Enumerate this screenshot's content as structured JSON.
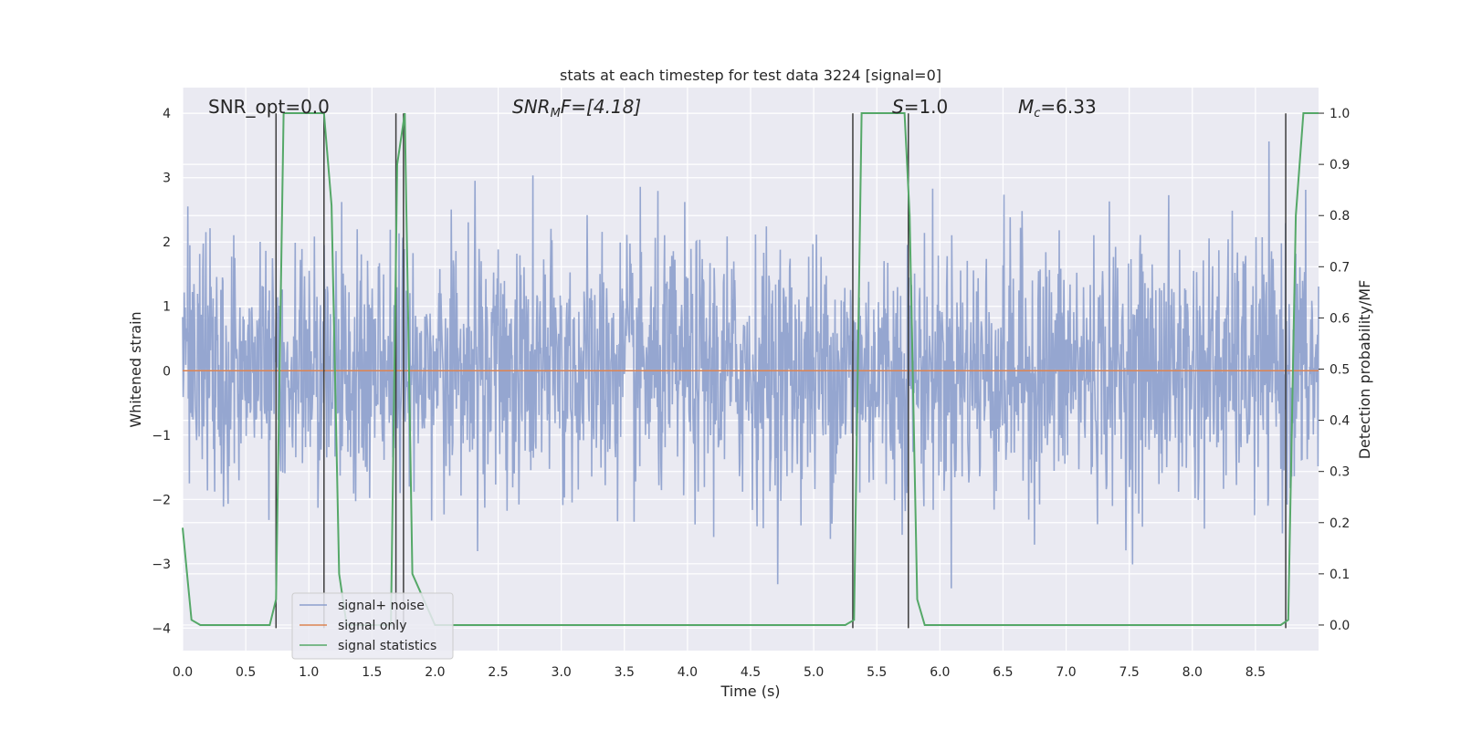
{
  "chart_data": {
    "type": "line",
    "title": "stats at each timestep for test data 3224 [signal=0]",
    "xlabel": "Time (s)",
    "ylabel": "Whitened strain",
    "y2label": "Detection probability/MF",
    "xlim": [
      0.0,
      9.0
    ],
    "ylim": [
      -4.35,
      4.4
    ],
    "y2lim": [
      -0.05,
      1.05
    ],
    "xticks": [
      "0.0",
      "0.5",
      "1.0",
      "1.5",
      "2.0",
      "2.5",
      "3.0",
      "3.5",
      "4.0",
      "4.5",
      "5.0",
      "5.5",
      "6.0",
      "6.5",
      "7.0",
      "7.5",
      "8.0",
      "8.5"
    ],
    "xtick_values": [
      0.0,
      0.5,
      1.0,
      1.5,
      2.0,
      2.5,
      3.0,
      3.5,
      4.0,
      4.5,
      5.0,
      5.5,
      6.0,
      6.5,
      7.0,
      7.5,
      8.0,
      8.5
    ],
    "yticks": [
      "4",
      "3",
      "2",
      "1",
      "0",
      "−1",
      "−2",
      "−3",
      "−4"
    ],
    "ytick_values": [
      4,
      3,
      2,
      1,
      0,
      -1,
      -2,
      -3,
      -4
    ],
    "y2ticks": [
      "1.0",
      "0.9",
      "0.8",
      "0.7",
      "0.6",
      "0.5",
      "0.4",
      "0.3",
      "0.2",
      "0.1",
      "0.0"
    ],
    "y2tick_values": [
      1.0,
      0.9,
      0.8,
      0.7,
      0.6,
      0.5,
      0.4,
      0.3,
      0.2,
      0.1,
      0.0
    ],
    "grid": true,
    "legend_position": "lower-left",
    "annotations": {
      "snr_opt": "SNR_opt=0.0",
      "snr_mf_main": "SNR",
      "snr_mf_sub": "M",
      "snr_mf_rest": "F=[4.18]",
      "s_main": "S",
      "s_rest": "=1.0",
      "mc_main": "M",
      "mc_sub": "c",
      "mc_rest": "=6.33"
    },
    "series": [
      {
        "name": "signal+ noise",
        "color": "#8c9fcc",
        "description_kind": "noise",
        "amplitude_band": [
          -2.5,
          2.5
        ]
      },
      {
        "name": "signal only",
        "color": "#dd8452",
        "values_constant": 0.0
      },
      {
        "name": "signal statistics",
        "color": "#55a868",
        "x": [
          0.0,
          0.07,
          0.14,
          0.2,
          0.4,
          0.6,
          0.69,
          0.74,
          0.8,
          1.0,
          1.12,
          1.18,
          1.24,
          1.3,
          1.5,
          1.6,
          1.65,
          1.7,
          1.76,
          1.82,
          2.0,
          3.0,
          4.0,
          5.0,
          5.25,
          5.32,
          5.38,
          5.6,
          5.72,
          5.76,
          5.82,
          5.88,
          6.0,
          7.0,
          8.0,
          8.7,
          8.76,
          8.82,
          8.88,
          8.95,
          9.0
        ],
        "y": [
          0.19,
          0.01,
          0.0,
          0.0,
          0.0,
          0.0,
          0.0,
          0.05,
          1.0,
          1.0,
          1.0,
          0.82,
          0.1,
          0.0,
          0.0,
          0.0,
          0.0,
          0.9,
          1.0,
          0.1,
          0.0,
          0.0,
          0.0,
          0.0,
          0.0,
          0.01,
          1.0,
          1.0,
          1.0,
          0.8,
          0.05,
          0.0,
          0.0,
          0.0,
          0.0,
          0.0,
          0.01,
          0.8,
          1.0,
          1.0,
          1.0
        ]
      }
    ],
    "vlines": [
      0.74,
      1.12,
      1.69,
      1.75,
      5.31,
      5.75,
      8.74
    ],
    "vline_color": "#3d3d3d"
  }
}
